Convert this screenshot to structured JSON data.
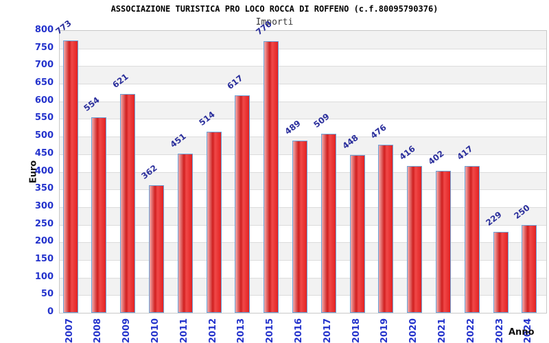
{
  "chart_data": {
    "type": "bar",
    "title": "ASSOCIAZIONE TURISTICA PRO LOCO ROCCA DI ROFFENO (c.f.80095790376)",
    "subtitle": "Importi",
    "xlabel": "Anno",
    "ylabel": "Euro",
    "categories": [
      "2007",
      "2008",
      "2009",
      "2010",
      "2011",
      "2012",
      "2013",
      "2015",
      "2016",
      "2017",
      "2018",
      "2019",
      "2020",
      "2021",
      "2022",
      "2023",
      "2024"
    ],
    "values": [
      773,
      554,
      621,
      362,
      451,
      514,
      617,
      770,
      489,
      509,
      448,
      476,
      416,
      402,
      417,
      229,
      250
    ],
    "ylim": [
      0,
      800
    ],
    "ytick_step": 50,
    "yticks": [
      0,
      50,
      100,
      150,
      200,
      250,
      300,
      350,
      400,
      450,
      500,
      550,
      600,
      650,
      700,
      750,
      800
    ],
    "grid": "horizontal alternating bands",
    "legend_position": "none",
    "colors": {
      "bar_fill_light": "#f3adad",
      "bar_fill_dark": "#cf1f1f",
      "bar_fill_main": "#e32222",
      "bar_border": "#6aa2d8",
      "value_label": "#2b2f9c",
      "axis_tick_label": "#2433cc",
      "band_gray": "#f2f2f2",
      "band_white": "#ffffff",
      "grid_line": "#dcdcdc",
      "plot_border": "#c8c8c8",
      "title_color": "#000000",
      "subtitle_color": "#3a3a3a",
      "axis_title_color": "#111111"
    }
  }
}
